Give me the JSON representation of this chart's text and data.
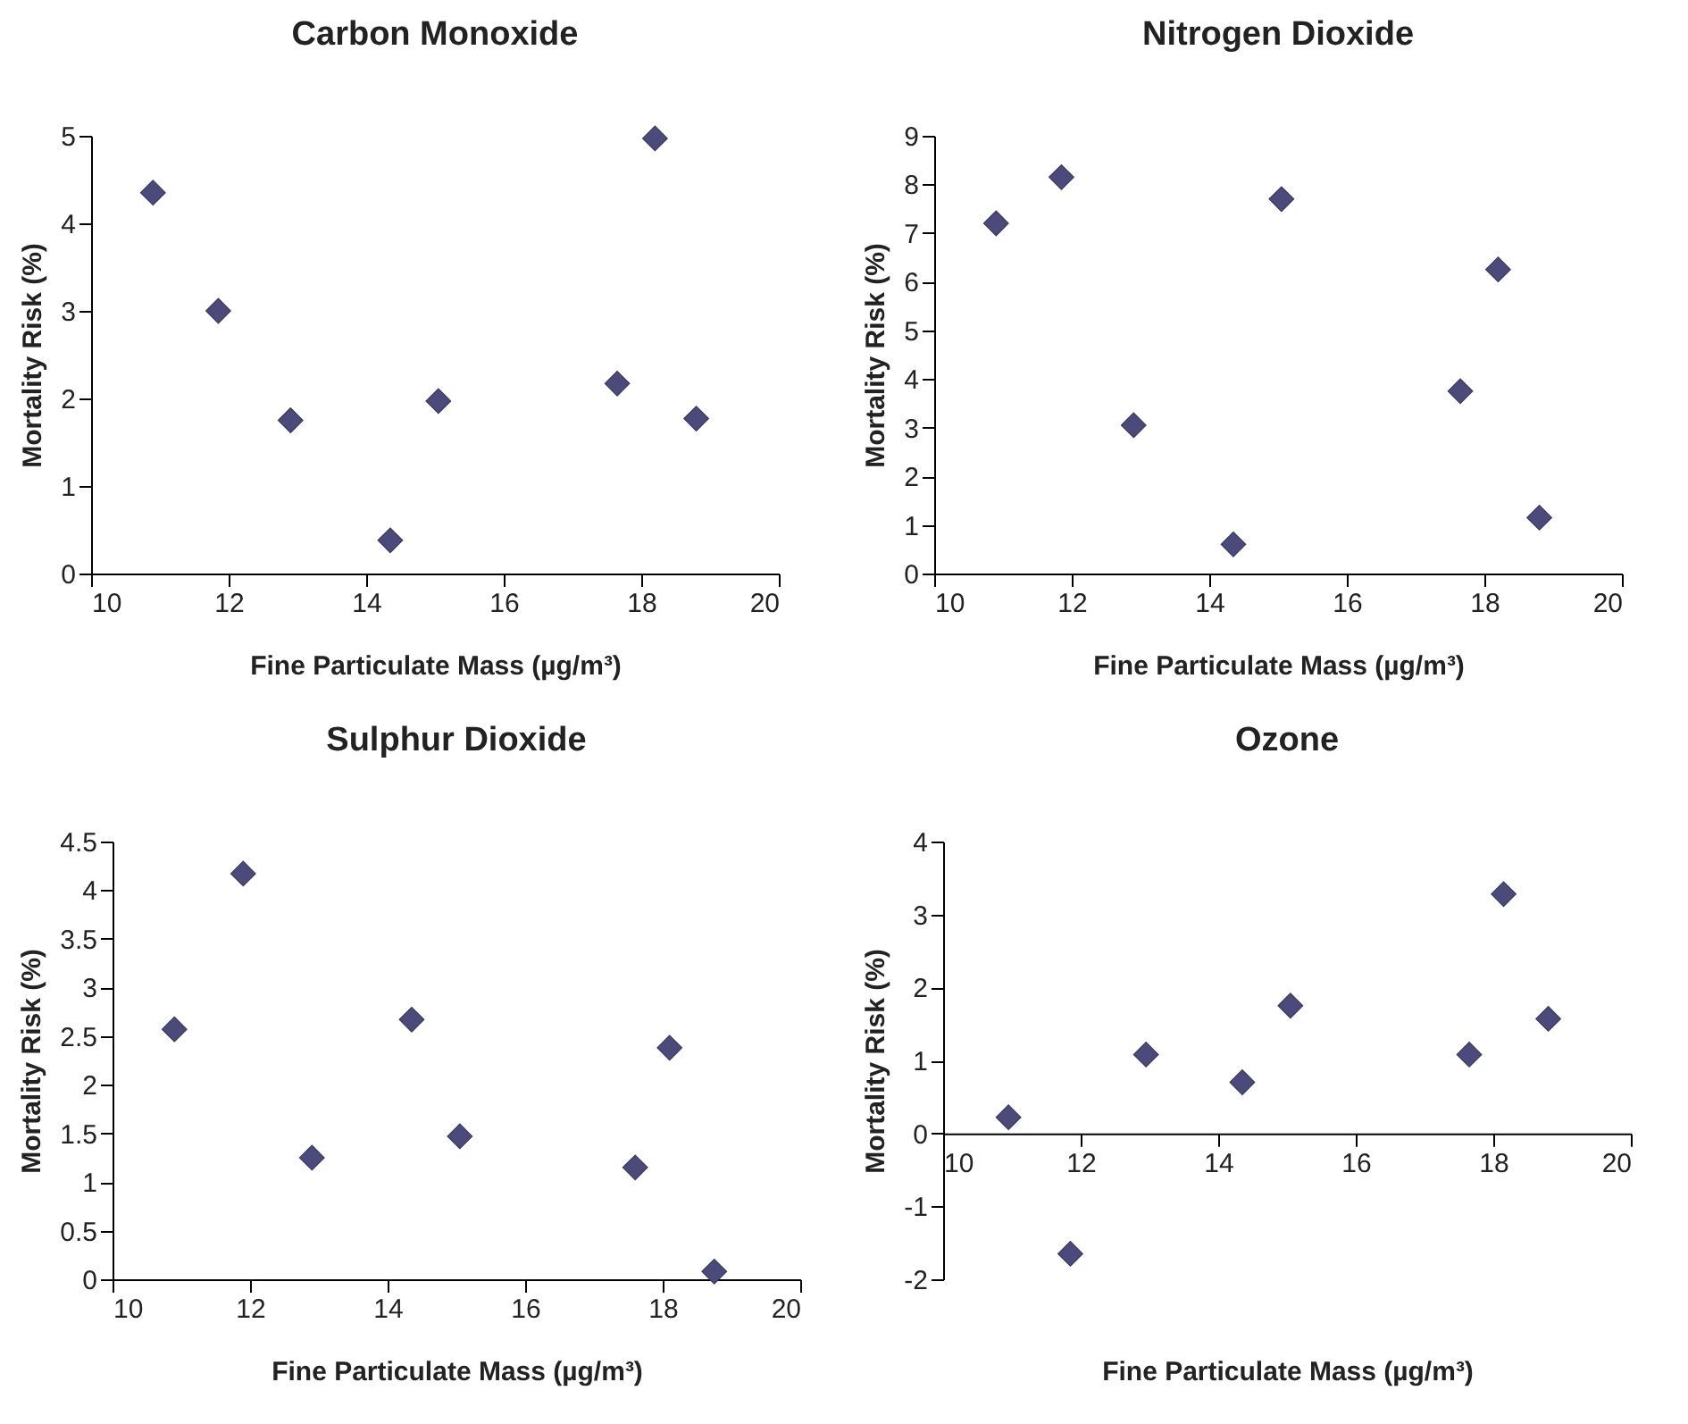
{
  "chart_data": [
    {
      "type": "scatter",
      "title": "Carbon Monoxide",
      "xlabel": "Fine Particulate Mass (µg/m³)",
      "ylabel": "Mortality Risk (%)",
      "marker": "diamond",
      "xlim": [
        10,
        20
      ],
      "xticks": [
        10,
        12,
        14,
        16,
        18,
        20
      ],
      "ylim": [
        0,
        5
      ],
      "yticks": [
        0,
        1,
        2,
        3,
        4,
        5
      ],
      "series": [
        {
          "color": "#4b4a7a",
          "x": [
            10.9,
            11.85,
            12.9,
            14.35,
            15.05,
            17.65,
            18.2,
            18.8
          ],
          "values": [
            4.35,
            3.0,
            1.75,
            0.38,
            1.97,
            2.17,
            4.97,
            1.77
          ]
        }
      ]
    },
    {
      "type": "scatter",
      "title": "Nitrogen Dioxide",
      "xlabel": "Fine Particulate Mass (µg/m³)",
      "ylabel": "Mortality Risk (%)",
      "marker": "diamond",
      "xlim": [
        10,
        20
      ],
      "xticks": [
        10,
        12,
        14,
        16,
        18,
        20
      ],
      "ylim": [
        0,
        9
      ],
      "yticks": [
        0,
        1,
        2,
        3,
        4,
        5,
        6,
        7,
        8,
        9
      ],
      "series": [
        {
          "color": "#4b4a7a",
          "x": [
            10.9,
            11.85,
            12.9,
            14.35,
            15.05,
            17.65,
            18.2,
            18.8
          ],
          "values": [
            7.2,
            8.15,
            3.05,
            0.6,
            7.7,
            3.75,
            6.25,
            1.15
          ]
        }
      ]
    },
    {
      "type": "scatter",
      "title": "Sulphur Dioxide",
      "xlabel": "Fine Particulate Mass (µg/m³)",
      "ylabel": "Mortality Risk (%)",
      "marker": "diamond",
      "xlim": [
        10,
        20
      ],
      "xticks": [
        10,
        12,
        14,
        16,
        18,
        20
      ],
      "ylim": [
        0,
        4.5
      ],
      "yticks": [
        0,
        0.5,
        1,
        1.5,
        2,
        2.5,
        3,
        3.5,
        4,
        4.5
      ],
      "series": [
        {
          "color": "#4b4a7a",
          "x": [
            10.9,
            11.9,
            12.9,
            14.35,
            15.05,
            17.6,
            18.1,
            18.75
          ],
          "values": [
            2.57,
            4.17,
            1.25,
            2.67,
            1.47,
            1.15,
            2.38,
            0.08
          ]
        }
      ]
    },
    {
      "type": "scatter",
      "title": "Ozone",
      "xlabel": "Fine Particulate Mass (µg/m³)",
      "ylabel": "Mortality Risk (%)",
      "marker": "diamond",
      "xlim": [
        10,
        20
      ],
      "xticks": [
        10,
        12,
        14,
        16,
        18,
        20
      ],
      "ylim": [
        -2,
        4
      ],
      "yticks": [
        -2,
        -1,
        0,
        1,
        2,
        3,
        4
      ],
      "series": [
        {
          "color": "#4b4a7a",
          "x": [
            10.95,
            11.85,
            12.95,
            14.35,
            15.05,
            17.65,
            18.15,
            18.8
          ],
          "values": [
            0.22,
            -1.65,
            1.08,
            0.7,
            1.75,
            1.08,
            3.28,
            1.57
          ]
        }
      ]
    }
  ]
}
